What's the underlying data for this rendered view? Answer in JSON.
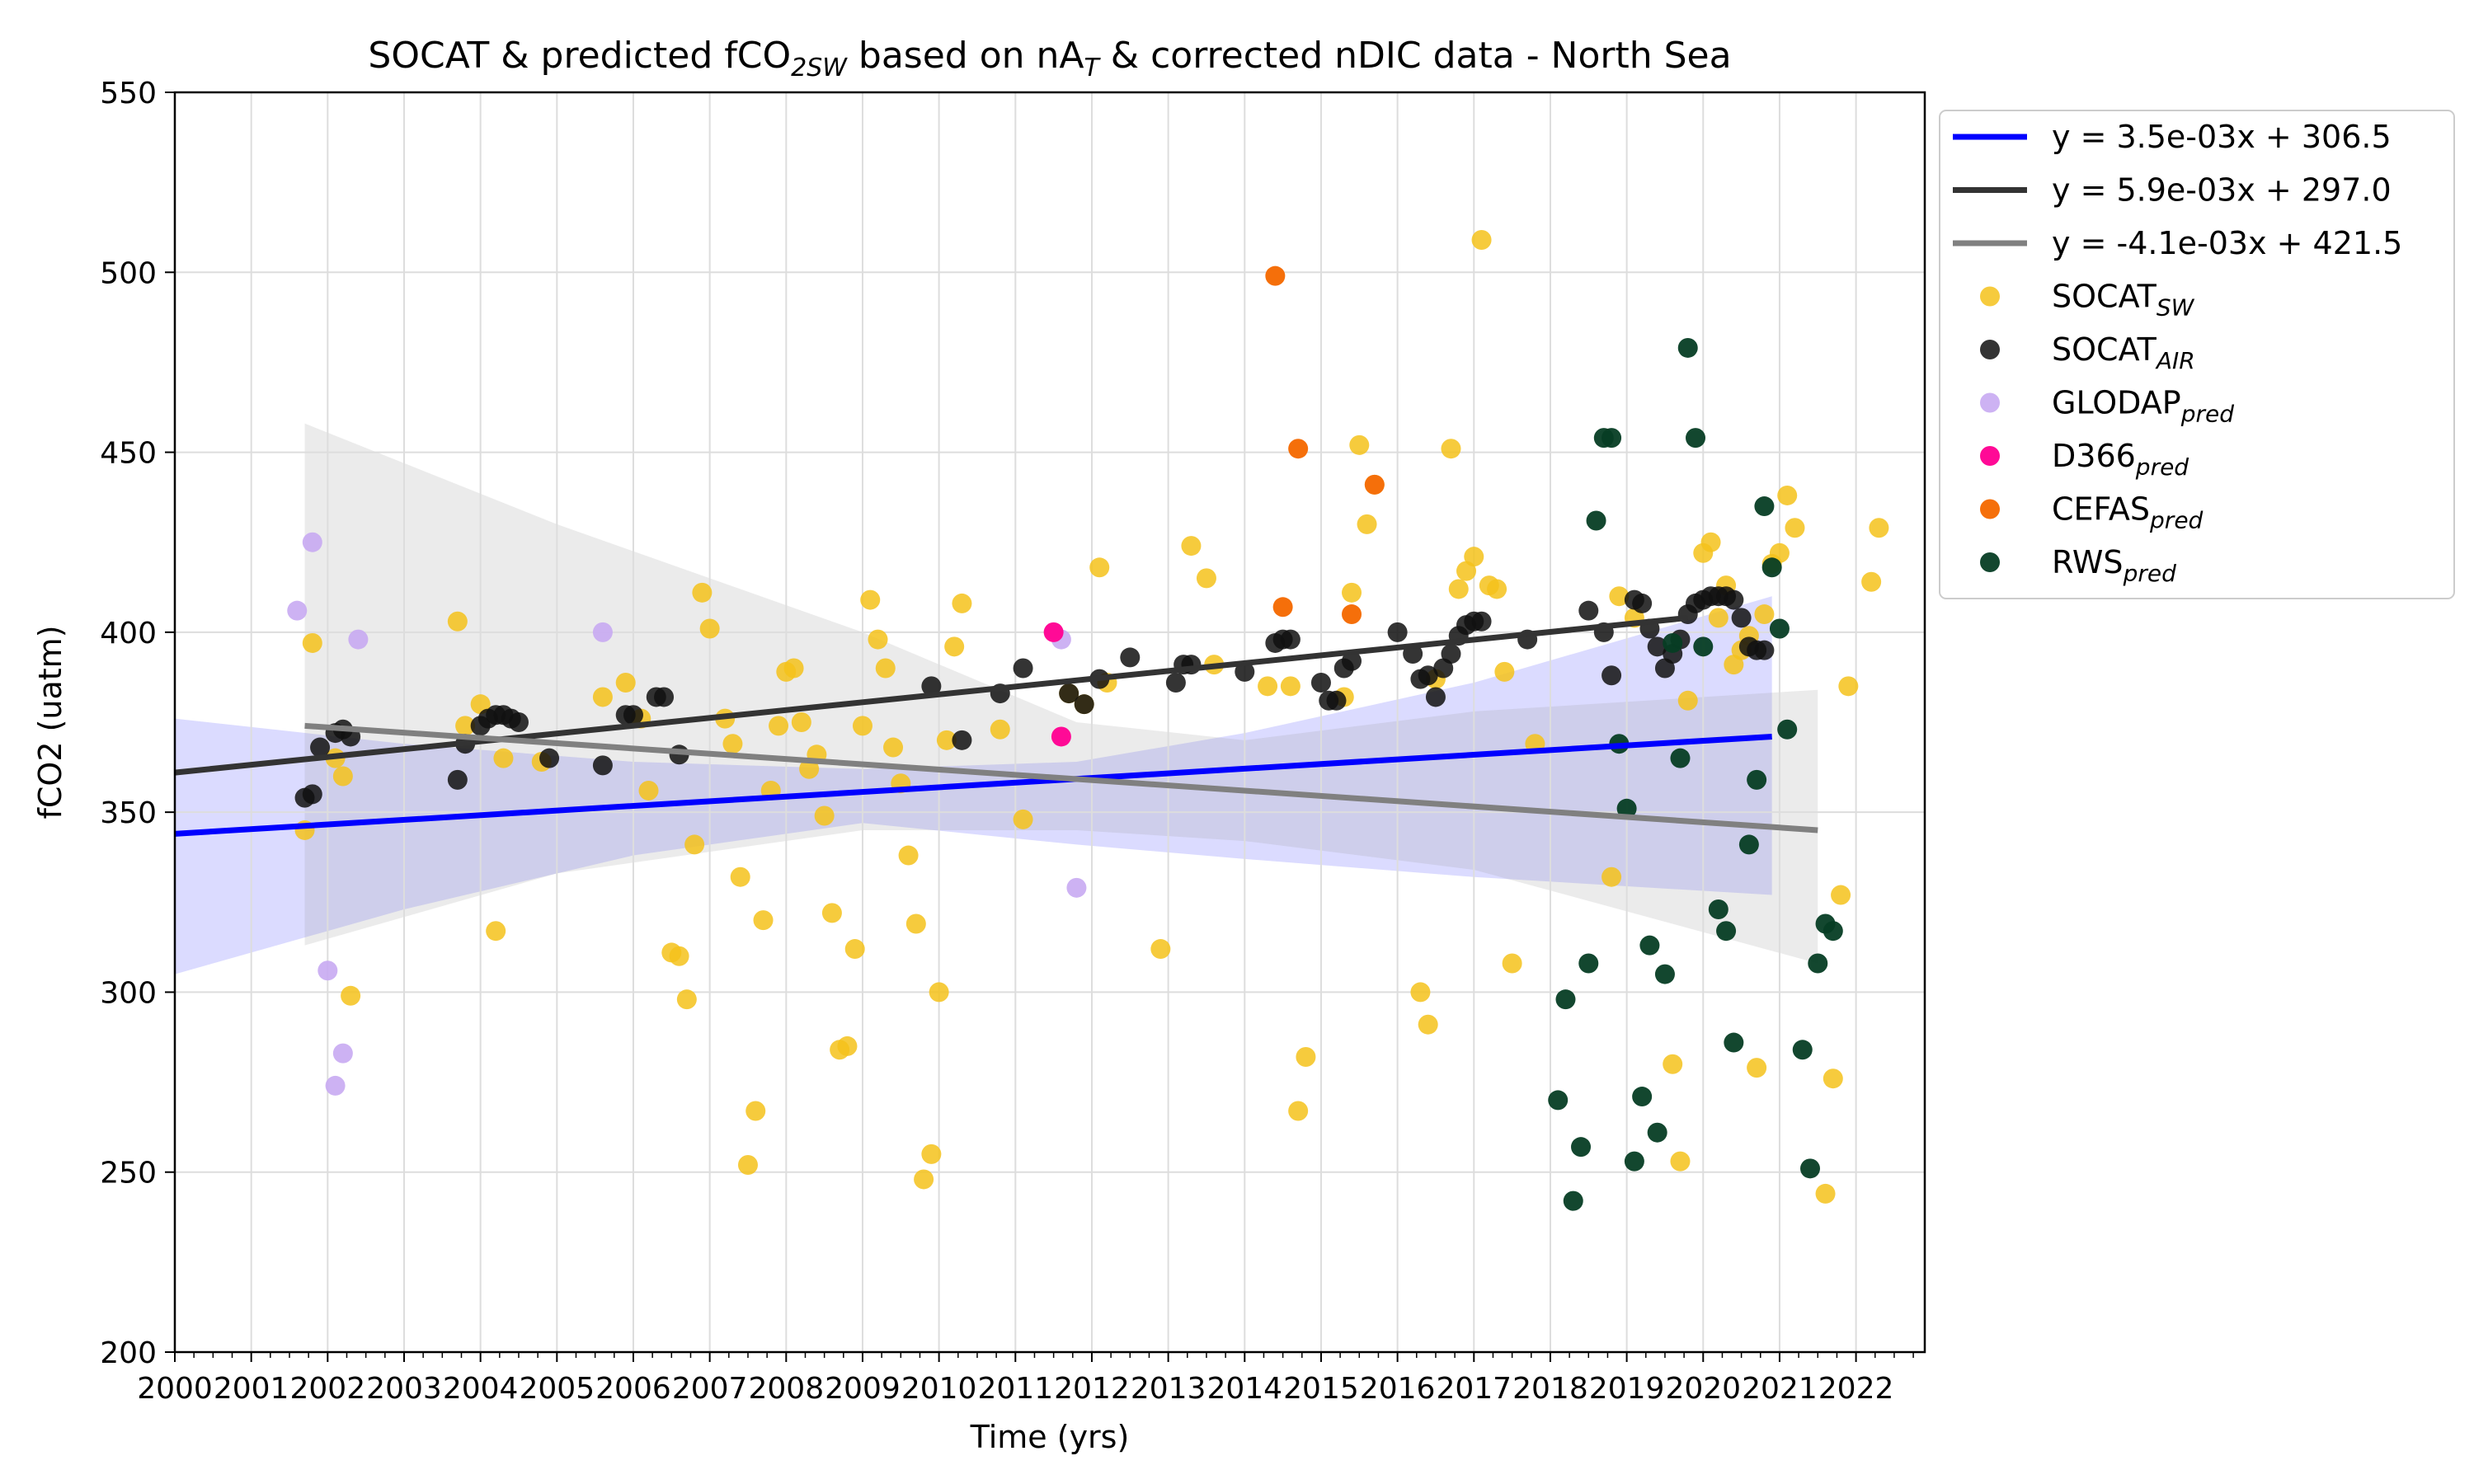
{
  "chart_data": {
    "type": "scatter",
    "title": {
      "prefix": "SOCAT & predicted fCO",
      "prefix_sub": "2SW",
      "middle": " based on nA",
      "middle_sub": "T",
      "suffix": " & corrected nDIC data - North Sea"
    },
    "xlabel": "Time (yrs)",
    "ylabel": "fCO2 (uatm)",
    "xlim": [
      2000,
      2022.9
    ],
    "ylim": [
      200,
      550
    ],
    "x_ticks": [
      2000,
      2001,
      2002,
      2003,
      2004,
      2005,
      2006,
      2007,
      2008,
      2009,
      2010,
      2011,
      2012,
      2013,
      2014,
      2015,
      2016,
      2017,
      2018,
      2019,
      2020,
      2021,
      2022
    ],
    "y_ticks": [
      200,
      250,
      300,
      350,
      400,
      450,
      500,
      550
    ],
    "grid": true,
    "legend_position": "outside-right",
    "bands": [
      {
        "name": "SOCAT_SW fit confidence band",
        "color": "#9999ff",
        "opacity": 0.35,
        "x": [
          2000.0,
          2003.0,
          2006.0,
          2009.0,
          2011.8,
          2014.0,
          2017.0,
          2020.9
        ],
        "upper": [
          376,
          369,
          364,
          362,
          364,
          372,
          386,
          410
        ],
        "lower": [
          305,
          323,
          338,
          347,
          341,
          337,
          332,
          327
        ]
      },
      {
        "name": "SOCAT_AIR fit confidence band",
        "color": "#999999",
        "opacity": 0.2,
        "x": [
          2001.7,
          2005.0,
          2009.0,
          2011.8,
          2014.0,
          2017.0,
          2021.5
        ],
        "upper": [
          458,
          430,
          400,
          375,
          370,
          378,
          384
        ],
        "lower": [
          313,
          333,
          345,
          345,
          342,
          334,
          308
        ]
      }
    ],
    "trend_lines": [
      {
        "label": "y = 3.5e-03x + 306.5",
        "color": "#0000ff",
        "x": [
          2000.0,
          2020.9
        ],
        "y": [
          344,
          371
        ]
      },
      {
        "label": "y = 5.9e-03x + 297.0",
        "color": "#333333",
        "x": [
          2000.0,
          2019.8
        ],
        "y": [
          361,
          404
        ]
      },
      {
        "label": "y = -4.1e-03x + 421.5",
        "color": "#808080",
        "x": [
          2001.7,
          2021.5
        ],
        "y": [
          374,
          345
        ]
      }
    ],
    "series": [
      {
        "name": "SOCAT",
        "sub": "SW",
        "color": "#f5c21b",
        "opacity": 0.85,
        "points": [
          [
            2001.7,
            345
          ],
          [
            2001.8,
            397
          ],
          [
            2002.1,
            365
          ],
          [
            2002.2,
            360
          ],
          [
            2002.3,
            299
          ],
          [
            2003.7,
            403
          ],
          [
            2003.8,
            374
          ],
          [
            2004.0,
            380
          ],
          [
            2004.3,
            365
          ],
          [
            2004.2,
            317
          ],
          [
            2004.8,
            364
          ],
          [
            2005.6,
            382
          ],
          [
            2005.9,
            386
          ],
          [
            2006.1,
            376
          ],
          [
            2006.2,
            356
          ],
          [
            2006.5,
            311
          ],
          [
            2006.6,
            310
          ],
          [
            2006.7,
            298
          ],
          [
            2006.8,
            341
          ],
          [
            2006.9,
            411
          ],
          [
            2007.0,
            401
          ],
          [
            2007.2,
            376
          ],
          [
            2007.3,
            369
          ],
          [
            2007.4,
            332
          ],
          [
            2007.5,
            252
          ],
          [
            2007.6,
            267
          ],
          [
            2007.7,
            320
          ],
          [
            2007.8,
            356
          ],
          [
            2007.9,
            374
          ],
          [
            2008.0,
            389
          ],
          [
            2008.1,
            390
          ],
          [
            2008.2,
            375
          ],
          [
            2008.3,
            362
          ],
          [
            2008.4,
            366
          ],
          [
            2008.5,
            349
          ],
          [
            2008.6,
            322
          ],
          [
            2008.7,
            284
          ],
          [
            2008.8,
            285
          ],
          [
            2008.9,
            312
          ],
          [
            2009.0,
            374
          ],
          [
            2009.1,
            409
          ],
          [
            2009.2,
            398
          ],
          [
            2009.3,
            390
          ],
          [
            2009.4,
            368
          ],
          [
            2009.5,
            358
          ],
          [
            2009.6,
            338
          ],
          [
            2009.7,
            319
          ],
          [
            2009.8,
            248
          ],
          [
            2009.9,
            255
          ],
          [
            2010.0,
            300
          ],
          [
            2010.1,
            370
          ],
          [
            2010.2,
            396
          ],
          [
            2010.3,
            408
          ],
          [
            2010.8,
            373
          ],
          [
            2011.1,
            348
          ],
          [
            2011.7,
            383
          ],
          [
            2011.9,
            380
          ],
          [
            2012.1,
            418
          ],
          [
            2012.2,
            386
          ],
          [
            2012.9,
            312
          ],
          [
            2013.3,
            424
          ],
          [
            2013.5,
            415
          ],
          [
            2013.6,
            391
          ],
          [
            2014.3,
            385
          ],
          [
            2014.6,
            385
          ],
          [
            2014.7,
            267
          ],
          [
            2014.8,
            282
          ],
          [
            2015.3,
            382
          ],
          [
            2015.4,
            411
          ],
          [
            2015.5,
            452
          ],
          [
            2015.6,
            430
          ],
          [
            2015.7,
            441
          ],
          [
            2016.3,
            300
          ],
          [
            2016.4,
            291
          ],
          [
            2016.5,
            387
          ],
          [
            2016.7,
            451
          ],
          [
            2016.8,
            412
          ],
          [
            2016.9,
            417
          ],
          [
            2017.0,
            421
          ],
          [
            2017.1,
            509
          ],
          [
            2017.2,
            413
          ],
          [
            2017.3,
            412
          ],
          [
            2017.4,
            389
          ],
          [
            2017.5,
            308
          ],
          [
            2017.8,
            369
          ],
          [
            2018.8,
            332
          ],
          [
            2018.9,
            410
          ],
          [
            2019.1,
            404
          ],
          [
            2019.7,
            253
          ],
          [
            2019.6,
            280
          ],
          [
            2019.8,
            381
          ],
          [
            2020.0,
            422
          ],
          [
            2020.1,
            425
          ],
          [
            2020.2,
            404
          ],
          [
            2020.3,
            413
          ],
          [
            2020.4,
            391
          ],
          [
            2020.5,
            395
          ],
          [
            2020.6,
            399
          ],
          [
            2020.7,
            279
          ],
          [
            2020.8,
            405
          ],
          [
            2020.9,
            419
          ],
          [
            2021.0,
            422
          ],
          [
            2021.1,
            438
          ],
          [
            2021.2,
            429
          ],
          [
            2021.6,
            244
          ],
          [
            2021.7,
            276
          ],
          [
            2021.8,
            327
          ],
          [
            2021.9,
            385
          ],
          [
            2022.2,
            414
          ],
          [
            2022.3,
            429
          ]
        ]
      },
      {
        "name": "SOCAT",
        "sub": "AIR",
        "color": "#111111",
        "opacity": 0.85,
        "points": [
          [
            2001.7,
            354
          ],
          [
            2001.8,
            355
          ],
          [
            2001.9,
            368
          ],
          [
            2002.1,
            372
          ],
          [
            2002.2,
            373
          ],
          [
            2002.3,
            371
          ],
          [
            2003.7,
            359
          ],
          [
            2003.8,
            369
          ],
          [
            2004.0,
            374
          ],
          [
            2004.1,
            376
          ],
          [
            2004.2,
            377
          ],
          [
            2004.3,
            377
          ],
          [
            2004.4,
            376
          ],
          [
            2004.5,
            375
          ],
          [
            2004.9,
            365
          ],
          [
            2005.6,
            363
          ],
          [
            2005.9,
            377
          ],
          [
            2006.0,
            377
          ],
          [
            2006.3,
            382
          ],
          [
            2006.4,
            382
          ],
          [
            2006.6,
            366
          ],
          [
            2009.9,
            385
          ],
          [
            2010.3,
            370
          ],
          [
            2010.8,
            383
          ],
          [
            2011.1,
            390
          ],
          [
            2011.7,
            383
          ],
          [
            2011.9,
            380
          ],
          [
            2012.1,
            387
          ],
          [
            2012.5,
            393
          ],
          [
            2013.1,
            386
          ],
          [
            2013.2,
            391
          ],
          [
            2013.3,
            391
          ],
          [
            2014.0,
            389
          ],
          [
            2014.4,
            397
          ],
          [
            2014.5,
            398
          ],
          [
            2014.6,
            398
          ],
          [
            2015.0,
            386
          ],
          [
            2015.1,
            381
          ],
          [
            2015.2,
            381
          ],
          [
            2015.3,
            390
          ],
          [
            2015.4,
            392
          ],
          [
            2016.0,
            400
          ],
          [
            2016.2,
            394
          ],
          [
            2016.3,
            387
          ],
          [
            2016.4,
            388
          ],
          [
            2016.5,
            382
          ],
          [
            2016.6,
            390
          ],
          [
            2016.7,
            394
          ],
          [
            2016.8,
            399
          ],
          [
            2016.9,
            402
          ],
          [
            2017.0,
            403
          ],
          [
            2017.1,
            403
          ],
          [
            2017.7,
            398
          ],
          [
            2018.5,
            406
          ],
          [
            2018.7,
            400
          ],
          [
            2018.8,
            388
          ],
          [
            2019.1,
            409
          ],
          [
            2019.2,
            408
          ],
          [
            2019.3,
            401
          ],
          [
            2019.4,
            396
          ],
          [
            2019.5,
            390
          ],
          [
            2019.6,
            394
          ],
          [
            2019.7,
            398
          ],
          [
            2019.8,
            405
          ],
          [
            2019.9,
            408
          ],
          [
            2020.0,
            409
          ],
          [
            2020.1,
            410
          ],
          [
            2020.2,
            410
          ],
          [
            2020.3,
            410
          ],
          [
            2020.4,
            409
          ],
          [
            2020.5,
            404
          ],
          [
            2020.6,
            396
          ],
          [
            2020.7,
            395
          ],
          [
            2020.8,
            395
          ]
        ]
      },
      {
        "name": "GLODAP",
        "sub": "pred",
        "color": "#c8aaf2",
        "opacity": 0.9,
        "points": [
          [
            2001.6,
            406
          ],
          [
            2001.8,
            425
          ],
          [
            2002.0,
            306
          ],
          [
            2002.1,
            274
          ],
          [
            2002.2,
            283
          ],
          [
            2002.4,
            398
          ],
          [
            2005.6,
            400
          ],
          [
            2011.6,
            398
          ],
          [
            2011.8,
            329
          ]
        ]
      },
      {
        "name": "D366",
        "sub": "pred",
        "color": "#ff0a96",
        "opacity": 1.0,
        "points": [
          [
            2011.5,
            400
          ],
          [
            2011.6,
            371
          ]
        ]
      },
      {
        "name": "CEFAS",
        "sub": "pred",
        "color": "#f56f0a",
        "opacity": 1.0,
        "points": [
          [
            2014.4,
            499
          ],
          [
            2014.5,
            407
          ],
          [
            2014.7,
            451
          ],
          [
            2015.4,
            405
          ],
          [
            2015.7,
            441
          ]
        ]
      },
      {
        "name": "RWS",
        "sub": "pred",
        "color": "#063d24",
        "opacity": 0.95,
        "points": [
          [
            2018.1,
            270
          ],
          [
            2018.2,
            298
          ],
          [
            2018.3,
            242
          ],
          [
            2018.4,
            257
          ],
          [
            2018.5,
            308
          ],
          [
            2018.6,
            431
          ],
          [
            2018.7,
            454
          ],
          [
            2018.8,
            454
          ],
          [
            2018.9,
            369
          ],
          [
            2019.0,
            351
          ],
          [
            2019.1,
            253
          ],
          [
            2019.2,
            271
          ],
          [
            2019.3,
            313
          ],
          [
            2019.4,
            261
          ],
          [
            2019.5,
            305
          ],
          [
            2019.6,
            397
          ],
          [
            2019.7,
            365
          ],
          [
            2019.8,
            479
          ],
          [
            2019.9,
            454
          ],
          [
            2020.0,
            396
          ],
          [
            2020.2,
            323
          ],
          [
            2020.3,
            317
          ],
          [
            2020.4,
            286
          ],
          [
            2020.6,
            341
          ],
          [
            2020.7,
            359
          ],
          [
            2020.8,
            435
          ],
          [
            2020.9,
            418
          ],
          [
            2021.0,
            401
          ],
          [
            2021.1,
            373
          ],
          [
            2021.3,
            284
          ],
          [
            2021.4,
            251
          ],
          [
            2021.5,
            308
          ],
          [
            2021.6,
            319
          ],
          [
            2021.7,
            317
          ]
        ]
      }
    ]
  }
}
